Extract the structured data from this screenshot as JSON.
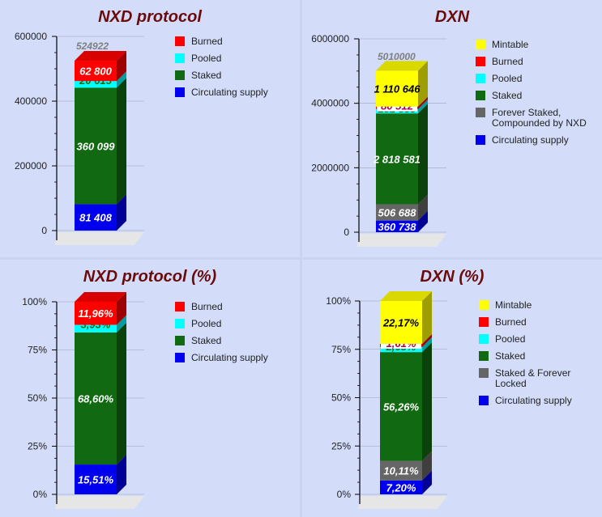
{
  "chart_data": [
    {
      "type": "bar",
      "stacked": true,
      "title": "NXD protocol",
      "ylim": [
        0,
        600000
      ],
      "y_ticks": [
        "0",
        "200000",
        "400000",
        "600000"
      ],
      "total_label": "524922",
      "series": [
        {
          "name": "Circulating supply",
          "value": 81408,
          "label": "81 408",
          "color": "#0000ee"
        },
        {
          "name": "Staked",
          "value": 360099,
          "label": "360 099",
          "color": "#116a11"
        },
        {
          "name": "Pooled",
          "value": 20615,
          "label": "20 615",
          "color": "#00ffff"
        },
        {
          "name": "Burned",
          "value": 62800,
          "label": "62 800",
          "color": "#ff0000"
        }
      ],
      "legend": [
        "Burned",
        "Pooled",
        "Staked",
        "Circulating supply"
      ],
      "legend_colors": [
        "#ff0000",
        "#00ffff",
        "#116a11",
        "#0000ee"
      ]
    },
    {
      "type": "bar",
      "stacked": true,
      "title": "DXN",
      "ylim": [
        0,
        6000000
      ],
      "y_ticks": [
        "0",
        "2000000",
        "4000000",
        "6000000"
      ],
      "total_label": "5010000",
      "series": [
        {
          "name": "Circulating supply",
          "value": 360738,
          "label": "360 738",
          "color": "#0000ee"
        },
        {
          "name": "Forever Staked, Compounded by NXD",
          "value": 506688,
          "label": "506 688",
          "color": "#666666"
        },
        {
          "name": "Staked",
          "value": 2818581,
          "label": "2 818 581",
          "color": "#116a11"
        },
        {
          "name": "Pooled",
          "value": 132835,
          "label": "132 835",
          "color": "#00ffff"
        },
        {
          "name": "Burned",
          "value": 80512,
          "label": "80 512",
          "color": "#ff0000"
        },
        {
          "name": "Mintable",
          "value": 1110646,
          "label": "1 110 646",
          "color": "#ffff00"
        }
      ],
      "legend": [
        "Mintable",
        "Burned",
        "Pooled",
        "Staked",
        "Forever Staked,\nCompounded by NXD",
        "Circulating supply"
      ],
      "legend_colors": [
        "#ffff00",
        "#ff0000",
        "#00ffff",
        "#116a11",
        "#666666",
        "#0000ee"
      ]
    },
    {
      "type": "bar",
      "stacked": true,
      "title": "NXD protocol (%)",
      "ylim": [
        0,
        100
      ],
      "y_ticks": [
        "0%",
        "25%",
        "50%",
        "75%",
        "100%"
      ],
      "total_label": "",
      "series": [
        {
          "name": "Circulating supply",
          "value": 15.51,
          "label": "15,51%",
          "color": "#0000ee"
        },
        {
          "name": "Staked",
          "value": 68.6,
          "label": "68,60%",
          "color": "#116a11"
        },
        {
          "name": "Pooled",
          "value": 3.93,
          "label": "3,93%",
          "color": "#00ffff"
        },
        {
          "name": "Burned",
          "value": 11.96,
          "label": "11,96%",
          "color": "#ff0000"
        }
      ],
      "legend": [
        "Burned",
        "Pooled",
        "Staked",
        "Circulating supply"
      ],
      "legend_colors": [
        "#ff0000",
        "#00ffff",
        "#116a11",
        "#0000ee"
      ]
    },
    {
      "type": "bar",
      "stacked": true,
      "title": "DXN (%)",
      "ylim": [
        0,
        100
      ],
      "y_ticks": [
        "0%",
        "25%",
        "50%",
        "75%",
        "100%"
      ],
      "total_label": "",
      "series": [
        {
          "name": "Circulating supply",
          "value": 7.2,
          "label": "7,20%",
          "color": "#0000ee"
        },
        {
          "name": "Staked & Forever Locked",
          "value": 10.11,
          "label": "10,11%",
          "color": "#666666"
        },
        {
          "name": "Staked",
          "value": 56.26,
          "label": "56,26%",
          "color": "#116a11"
        },
        {
          "name": "Pooled",
          "value": 2.65,
          "label": "2,65%",
          "color": "#00ffff"
        },
        {
          "name": "Burned",
          "value": 1.61,
          "label": "1,61%",
          "color": "#ff0000"
        },
        {
          "name": "Mintable",
          "value": 22.17,
          "label": "22,17%",
          "color": "#ffff00"
        }
      ],
      "legend": [
        "Mintable",
        "Burned",
        "Pooled",
        "Staked",
        "Staked & Forever\nLocked",
        "Circulating supply"
      ],
      "legend_colors": [
        "#ffff00",
        "#ff0000",
        "#00ffff",
        "#116a11",
        "#666666",
        "#0000ee"
      ]
    }
  ]
}
